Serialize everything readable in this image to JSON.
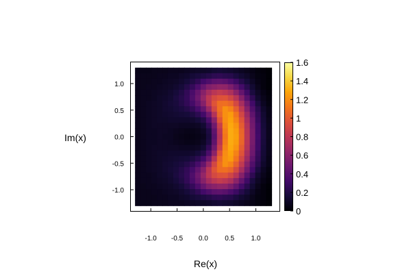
{
  "chart_data": {
    "type": "heatmap",
    "xlabel": "Re(x)",
    "ylabel": "Im(x)",
    "xlim": [
      -1.38,
      1.45
    ],
    "ylim": [
      -1.4,
      1.4
    ],
    "x_ticks": [
      -1.0,
      -0.5,
      0.0,
      0.5,
      1.0
    ],
    "x_tick_labels": [
      "-1.0",
      "-0.5",
      "0.0",
      "0.5",
      "1.0"
    ],
    "y_ticks": [
      1.0,
      0.5,
      0.0,
      -0.5,
      -1.0
    ],
    "y_tick_labels": [
      "1.0",
      "0.5",
      "0.0",
      "-0.5",
      "-1.0"
    ],
    "grid": false,
    "colormap": "inferno",
    "colorbar": {
      "range": [
        0,
        1.6
      ],
      "ticks": [
        0,
        0.2,
        0.4,
        0.6,
        0.8,
        1,
        1.2,
        1.4,
        1.6
      ],
      "tick_labels": [
        "0",
        "0.2",
        "0.4",
        "0.6",
        "0.8",
        "1",
        "1.2",
        "1.4",
        "1.6"
      ]
    },
    "grid_size": [
      25,
      25
    ],
    "x_range": [
      -1.3,
      1.3
    ],
    "y_range": [
      -1.3,
      1.3
    ],
    "values": [
      [
        0.06,
        0.06,
        0.06,
        0.07,
        0.07,
        0.07,
        0.08,
        0.08,
        0.08,
        0.09,
        0.1,
        0.11,
        0.11,
        0.12,
        0.14,
        0.15,
        0.14,
        0.13,
        0.11,
        0.09,
        0.07,
        0.05,
        0.03,
        0.02,
        0.01
      ],
      [
        0.07,
        0.07,
        0.07,
        0.07,
        0.08,
        0.08,
        0.09,
        0.09,
        0.11,
        0.12,
        0.15,
        0.17,
        0.19,
        0.21,
        0.24,
        0.25,
        0.23,
        0.22,
        0.18,
        0.14,
        0.11,
        0.07,
        0.04,
        0.03,
        0.01
      ],
      [
        0.07,
        0.07,
        0.07,
        0.08,
        0.08,
        0.09,
        0.1,
        0.11,
        0.13,
        0.16,
        0.2,
        0.25,
        0.32,
        0.37,
        0.42,
        0.43,
        0.41,
        0.36,
        0.3,
        0.22,
        0.16,
        0.1,
        0.05,
        0.03,
        0.01
      ],
      [
        0.07,
        0.07,
        0.08,
        0.08,
        0.09,
        0.1,
        0.11,
        0.13,
        0.16,
        0.21,
        0.27,
        0.36,
        0.47,
        0.56,
        0.6,
        0.63,
        0.62,
        0.55,
        0.45,
        0.33,
        0.23,
        0.14,
        0.07,
        0.03,
        0.01
      ],
      [
        0.07,
        0.08,
        0.08,
        0.09,
        0.1,
        0.11,
        0.13,
        0.16,
        0.2,
        0.26,
        0.35,
        0.46,
        0.59,
        0.71,
        0.79,
        0.83,
        0.8,
        0.74,
        0.61,
        0.46,
        0.31,
        0.18,
        0.1,
        0.05,
        0.02
      ],
      [
        0.07,
        0.08,
        0.08,
        0.09,
        0.11,
        0.12,
        0.14,
        0.18,
        0.22,
        0.27,
        0.37,
        0.49,
        0.64,
        0.8,
        0.91,
        0.96,
        0.97,
        0.89,
        0.78,
        0.59,
        0.4,
        0.25,
        0.13,
        0.07,
        0.03
      ],
      [
        0.07,
        0.08,
        0.09,
        0.1,
        0.11,
        0.13,
        0.15,
        0.17,
        0.21,
        0.26,
        0.33,
        0.44,
        0.58,
        0.79,
        0.97,
        1.08,
        1.09,
        1.05,
        0.91,
        0.72,
        0.51,
        0.32,
        0.18,
        0.09,
        0.04
      ],
      [
        0.07,
        0.08,
        0.09,
        0.1,
        0.11,
        0.13,
        0.14,
        0.16,
        0.18,
        0.21,
        0.26,
        0.34,
        0.46,
        0.66,
        0.9,
        1.09,
        1.21,
        1.16,
        1.02,
        0.82,
        0.59,
        0.38,
        0.23,
        0.12,
        0.06
      ],
      [
        0.07,
        0.08,
        0.09,
        0.1,
        0.11,
        0.12,
        0.13,
        0.14,
        0.15,
        0.16,
        0.19,
        0.24,
        0.32,
        0.49,
        0.76,
        1.05,
        1.21,
        1.25,
        1.11,
        0.9,
        0.67,
        0.44,
        0.26,
        0.14,
        0.06
      ],
      [
        0.07,
        0.08,
        0.09,
        0.1,
        0.11,
        0.11,
        0.12,
        0.12,
        0.12,
        0.12,
        0.13,
        0.16,
        0.21,
        0.36,
        0.61,
        0.97,
        1.2,
        1.27,
        1.16,
        0.97,
        0.72,
        0.49,
        0.28,
        0.15,
        0.07
      ],
      [
        0.07,
        0.08,
        0.09,
        0.1,
        0.1,
        0.1,
        0.1,
        0.1,
        0.09,
        0.09,
        0.09,
        0.1,
        0.14,
        0.26,
        0.5,
        0.85,
        1.17,
        1.29,
        1.22,
        1.01,
        0.76,
        0.51,
        0.31,
        0.16,
        0.08
      ],
      [
        0.07,
        0.08,
        0.09,
        0.09,
        0.1,
        0.1,
        0.09,
        0.08,
        0.07,
        0.06,
        0.06,
        0.07,
        0.1,
        0.19,
        0.43,
        0.79,
        1.14,
        1.3,
        1.25,
        1.05,
        0.78,
        0.53,
        0.31,
        0.17,
        0.08
      ],
      [
        0.07,
        0.08,
        0.09,
        0.09,
        0.1,
        0.09,
        0.09,
        0.07,
        0.06,
        0.05,
        0.05,
        0.06,
        0.08,
        0.17,
        0.4,
        0.76,
        1.12,
        1.3,
        1.26,
        1.06,
        0.79,
        0.53,
        0.32,
        0.17,
        0.08
      ],
      [
        0.07,
        0.08,
        0.09,
        0.09,
        0.1,
        0.1,
        0.09,
        0.08,
        0.07,
        0.06,
        0.06,
        0.07,
        0.1,
        0.19,
        0.43,
        0.79,
        1.14,
        1.3,
        1.25,
        1.05,
        0.78,
        0.53,
        0.31,
        0.17,
        0.08
      ],
      [
        0.07,
        0.08,
        0.09,
        0.1,
        0.1,
        0.1,
        0.1,
        0.1,
        0.09,
        0.09,
        0.09,
        0.1,
        0.14,
        0.26,
        0.5,
        0.85,
        1.17,
        1.29,
        1.22,
        1.01,
        0.76,
        0.51,
        0.31,
        0.16,
        0.08
      ],
      [
        0.07,
        0.08,
        0.09,
        0.1,
        0.11,
        0.11,
        0.12,
        0.12,
        0.12,
        0.12,
        0.13,
        0.16,
        0.21,
        0.36,
        0.61,
        0.97,
        1.2,
        1.27,
        1.16,
        0.97,
        0.72,
        0.49,
        0.28,
        0.15,
        0.07
      ],
      [
        0.07,
        0.08,
        0.09,
        0.1,
        0.11,
        0.12,
        0.13,
        0.14,
        0.15,
        0.16,
        0.19,
        0.24,
        0.32,
        0.49,
        0.76,
        1.05,
        1.21,
        1.25,
        1.11,
        0.9,
        0.67,
        0.44,
        0.26,
        0.14,
        0.06
      ],
      [
        0.07,
        0.08,
        0.09,
        0.1,
        0.11,
        0.13,
        0.14,
        0.16,
        0.18,
        0.21,
        0.26,
        0.34,
        0.46,
        0.66,
        0.9,
        1.09,
        1.21,
        1.16,
        1.02,
        0.82,
        0.59,
        0.38,
        0.23,
        0.12,
        0.06
      ],
      [
        0.07,
        0.08,
        0.09,
        0.1,
        0.11,
        0.13,
        0.15,
        0.17,
        0.21,
        0.26,
        0.33,
        0.44,
        0.58,
        0.79,
        0.97,
        1.08,
        1.09,
        1.05,
        0.91,
        0.72,
        0.51,
        0.32,
        0.18,
        0.09,
        0.04
      ],
      [
        0.07,
        0.08,
        0.08,
        0.09,
        0.11,
        0.12,
        0.14,
        0.18,
        0.22,
        0.27,
        0.37,
        0.49,
        0.64,
        0.8,
        0.91,
        0.96,
        0.97,
        0.89,
        0.78,
        0.59,
        0.4,
        0.25,
        0.13,
        0.07,
        0.03
      ],
      [
        0.07,
        0.08,
        0.08,
        0.09,
        0.1,
        0.11,
        0.13,
        0.16,
        0.2,
        0.26,
        0.35,
        0.46,
        0.59,
        0.71,
        0.79,
        0.83,
        0.8,
        0.74,
        0.61,
        0.46,
        0.31,
        0.18,
        0.1,
        0.05,
        0.02
      ],
      [
        0.07,
        0.07,
        0.08,
        0.08,
        0.09,
        0.1,
        0.11,
        0.13,
        0.16,
        0.21,
        0.27,
        0.36,
        0.47,
        0.56,
        0.6,
        0.63,
        0.62,
        0.55,
        0.45,
        0.33,
        0.23,
        0.14,
        0.07,
        0.03,
        0.01
      ],
      [
        0.07,
        0.07,
        0.07,
        0.08,
        0.08,
        0.09,
        0.1,
        0.11,
        0.13,
        0.16,
        0.2,
        0.25,
        0.32,
        0.37,
        0.42,
        0.43,
        0.41,
        0.36,
        0.3,
        0.22,
        0.16,
        0.1,
        0.05,
        0.03,
        0.01
      ],
      [
        0.07,
        0.07,
        0.07,
        0.07,
        0.08,
        0.08,
        0.09,
        0.09,
        0.11,
        0.12,
        0.15,
        0.17,
        0.19,
        0.21,
        0.24,
        0.25,
        0.23,
        0.22,
        0.18,
        0.14,
        0.11,
        0.07,
        0.04,
        0.03,
        0.01
      ],
      [
        0.06,
        0.06,
        0.06,
        0.07,
        0.07,
        0.07,
        0.08,
        0.08,
        0.08,
        0.09,
        0.1,
        0.11,
        0.11,
        0.12,
        0.14,
        0.15,
        0.14,
        0.13,
        0.11,
        0.09,
        0.07,
        0.05,
        0.03,
        0.02,
        0.01
      ]
    ]
  }
}
